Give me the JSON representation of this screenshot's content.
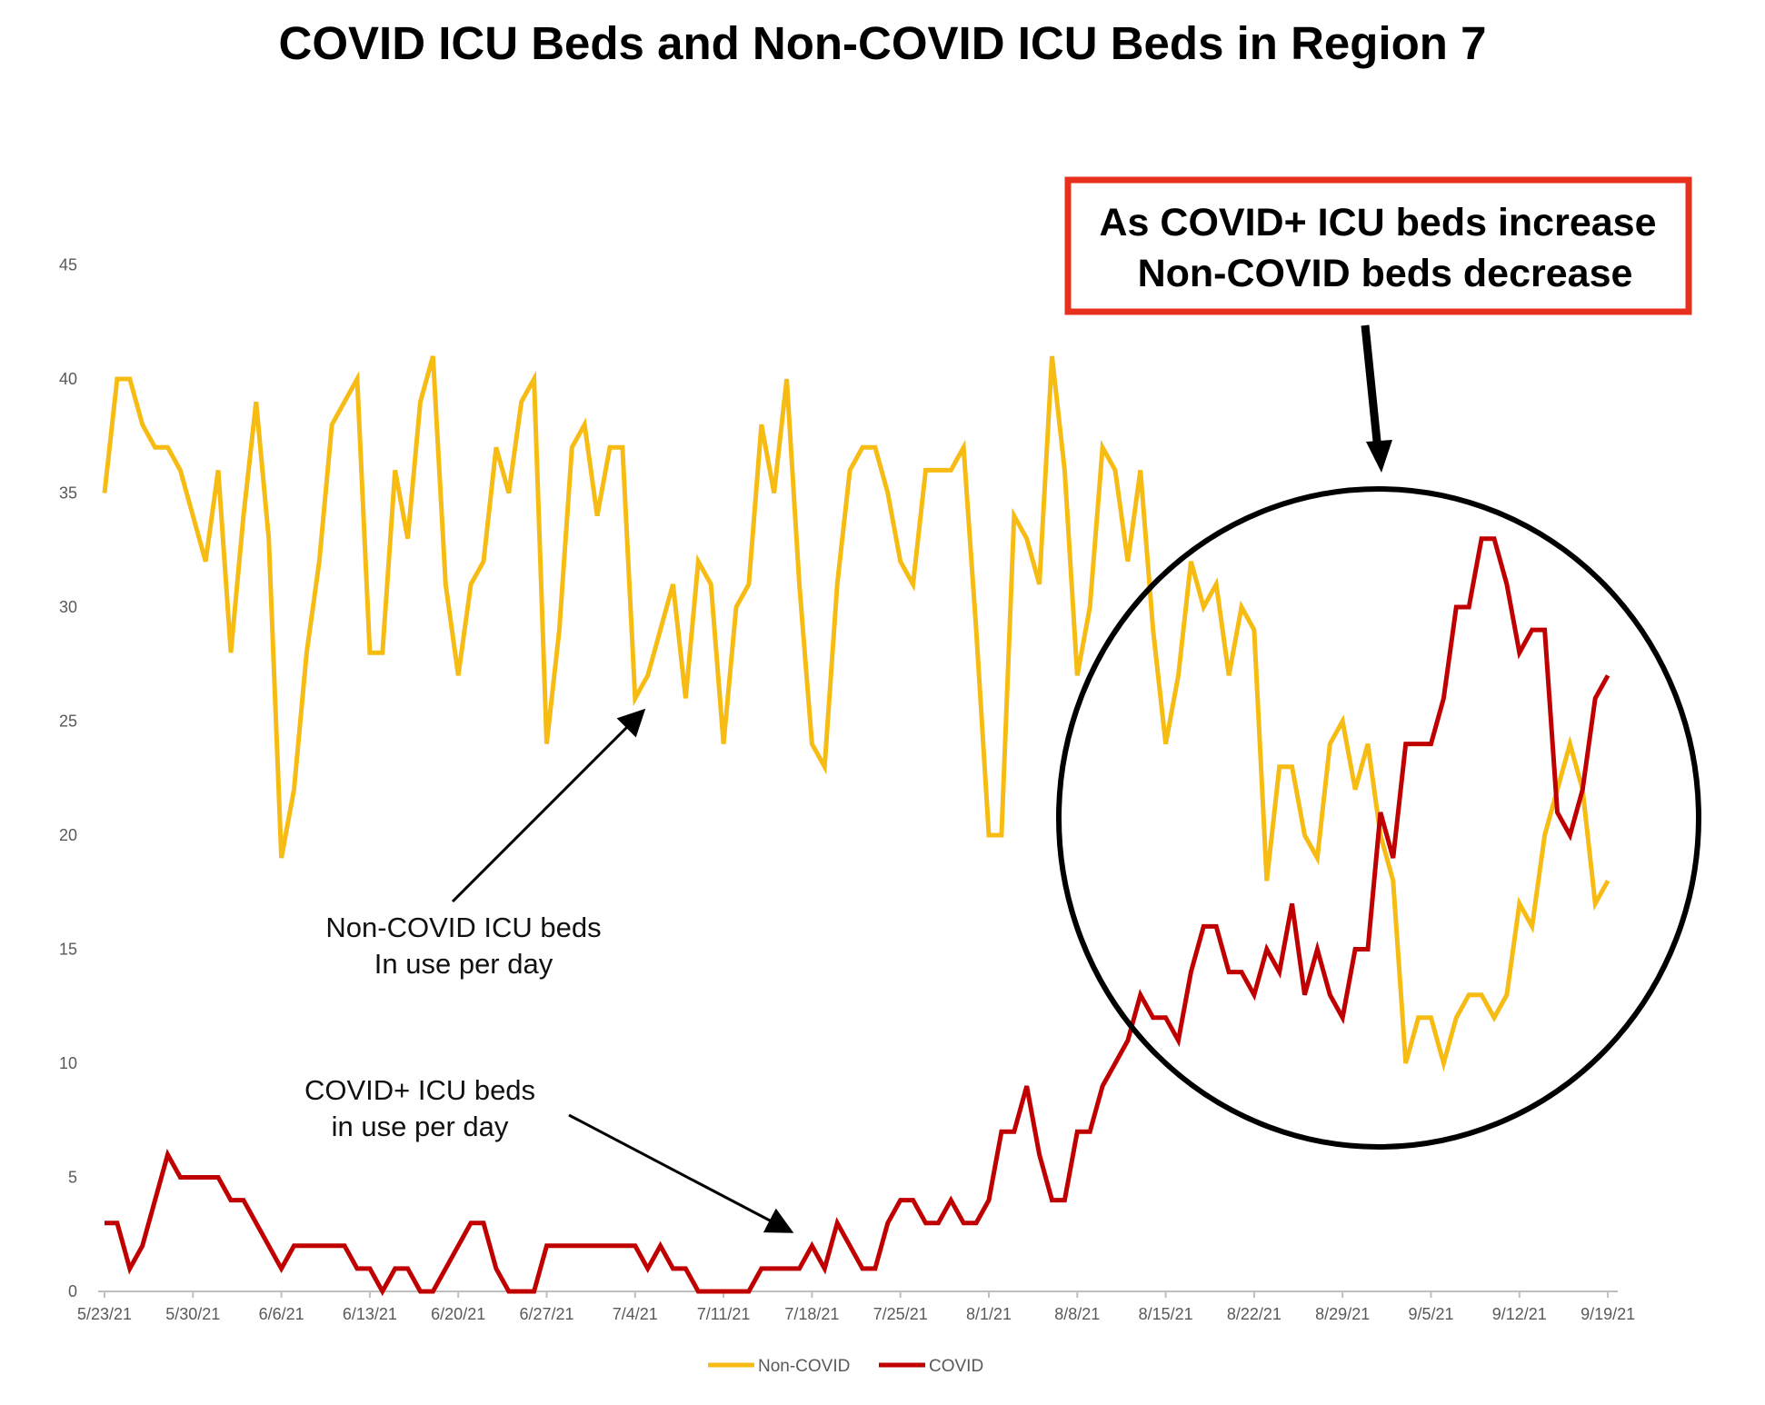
{
  "chart_data": {
    "type": "line",
    "title": "COVID ICU Beds and Non-COVID ICU Beds in Region 7",
    "xlabel": "",
    "ylabel": "",
    "x_start": "5/23/21",
    "x_tick_labels": [
      "5/23/21",
      "5/30/21",
      "6/6/21",
      "6/13/21",
      "6/20/21",
      "6/27/21",
      "7/4/21",
      "7/11/21",
      "7/18/21",
      "7/25/21",
      "8/1/21",
      "8/8/21",
      "8/15/21",
      "8/22/21",
      "8/29/21",
      "9/5/21",
      "9/12/21",
      "9/19/21"
    ],
    "y_ticks": [
      0,
      5,
      10,
      15,
      20,
      25,
      30,
      35,
      40,
      45
    ],
    "ylim": [
      0,
      45
    ],
    "grid": false,
    "legend_position": "bottom",
    "series": [
      {
        "name": "Non-COVID",
        "color": "#F6BC14",
        "values": [
          35,
          40,
          40,
          38,
          37,
          37,
          36,
          34,
          32,
          36,
          28,
          34,
          39,
          33,
          19,
          22,
          28,
          32,
          38,
          39,
          40,
          28,
          28,
          36,
          33,
          39,
          41,
          31,
          27,
          31,
          32,
          37,
          35,
          39,
          40,
          24,
          29,
          37,
          38,
          34,
          37,
          37,
          26,
          27,
          29,
          31,
          26,
          32,
          31,
          24,
          30,
          31,
          38,
          35,
          40,
          31,
          24,
          23,
          31,
          36,
          37,
          37,
          35,
          32,
          31,
          36,
          36,
          36,
          37,
          29,
          20,
          20,
          34,
          33,
          31,
          41,
          36,
          27,
          30,
          37,
          36,
          32,
          36,
          29,
          24,
          27,
          32,
          30,
          31,
          27,
          30,
          29,
          18,
          23,
          23,
          20,
          19,
          24,
          25,
          22,
          24,
          20,
          18,
          10,
          12,
          12,
          10,
          12,
          13,
          13,
          12,
          13,
          17,
          16,
          20,
          22,
          24,
          22,
          17,
          18
        ]
      },
      {
        "name": "COVID",
        "color": "#C00000",
        "values": [
          3,
          3,
          1,
          2,
          4,
          6,
          5,
          5,
          5,
          5,
          4,
          4,
          3,
          2,
          1,
          2,
          2,
          2,
          2,
          2,
          1,
          1,
          0,
          1,
          1,
          0,
          0,
          1,
          2,
          3,
          3,
          1,
          0,
          0,
          0,
          2,
          2,
          2,
          2,
          2,
          2,
          2,
          2,
          1,
          2,
          1,
          1,
          0,
          0,
          0,
          0,
          0,
          1,
          1,
          1,
          1,
          2,
          1,
          3,
          2,
          1,
          1,
          3,
          4,
          4,
          3,
          3,
          4,
          3,
          3,
          4,
          7,
          7,
          9,
          6,
          4,
          4,
          7,
          7,
          9,
          10,
          11,
          13,
          12,
          12,
          11,
          14,
          16,
          16,
          14,
          14,
          13,
          15,
          14,
          17,
          13,
          15,
          13,
          12,
          15,
          15,
          21,
          19,
          24,
          24,
          24,
          26,
          30,
          30,
          33,
          33,
          31,
          28,
          29,
          29,
          21,
          20,
          22,
          26,
          27
        ]
      }
    ],
    "annotations": {
      "noncovid_label": [
        "Non-COVID ICU beds",
        "In use per day"
      ],
      "covid_label": [
        "COVID+ ICU beds",
        "in use per day"
      ],
      "callout": [
        "As COVID+ ICU beds increase",
        "Non-COVID beds decrease"
      ]
    }
  }
}
